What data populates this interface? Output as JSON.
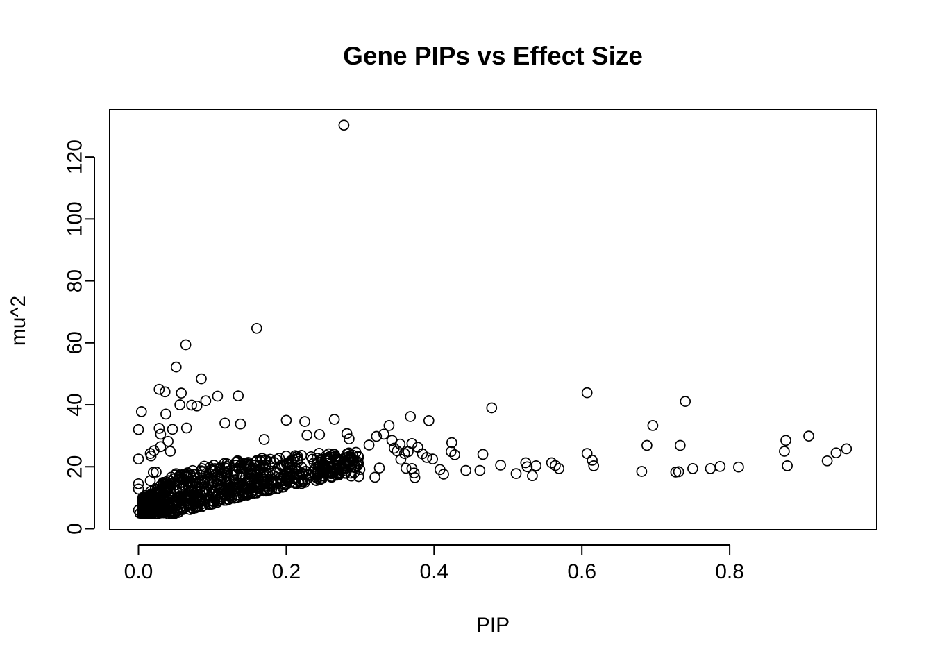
{
  "chart_data": {
    "type": "scatter",
    "title": "Gene PIPs vs Effect Size",
    "xlabel": "PIP",
    "ylabel": "mu^2",
    "xlim": [
      -0.04,
      1.0
    ],
    "ylim": [
      0,
      130
    ],
    "x_ticks": [
      {
        "value": 0.0,
        "label": "0.0"
      },
      {
        "value": 0.2,
        "label": "0.2"
      },
      {
        "value": 0.4,
        "label": "0.4"
      },
      {
        "value": 0.6,
        "label": "0.6"
      },
      {
        "value": 0.8,
        "label": "0.8"
      }
    ],
    "y_ticks": [
      {
        "value": 0,
        "label": "0"
      },
      {
        "value": 20,
        "label": "20"
      },
      {
        "value": 40,
        "label": "40"
      },
      {
        "value": 60,
        "label": "60"
      },
      {
        "value": 80,
        "label": "80"
      },
      {
        "value": 100,
        "label": "100"
      },
      {
        "value": 120,
        "label": "120"
      }
    ],
    "grid": false,
    "legend": "none",
    "marker": "open-circle",
    "point_color": "#000000",
    "series": [
      {
        "name": "genes",
        "points": [
          [
            0.278,
            130.3
          ],
          [
            0.16,
            64.7
          ],
          [
            0.064,
            59.4
          ],
          [
            0.051,
            52.2
          ],
          [
            0.085,
            48.4
          ],
          [
            0.028,
            45.0
          ],
          [
            0.036,
            44.2
          ],
          [
            0.058,
            43.8
          ],
          [
            0.107,
            42.8
          ],
          [
            0.135,
            42.9
          ],
          [
            0.091,
            41.3
          ],
          [
            0.072,
            39.9
          ],
          [
            0.079,
            39.6
          ],
          [
            0.056,
            40.0
          ],
          [
            0.004,
            37.8
          ],
          [
            0.037,
            37.0
          ],
          [
            0.046,
            32.1
          ],
          [
            0.028,
            32.4
          ],
          [
            0.065,
            32.5
          ],
          [
            0.117,
            34.1
          ],
          [
            0.138,
            33.8
          ],
          [
            0.0,
            32.0
          ],
          [
            0.03,
            30.5
          ],
          [
            0.04,
            28.2
          ],
          [
            0.03,
            26.5
          ],
          [
            0.021,
            25.2
          ],
          [
            0.043,
            25.0
          ],
          [
            0.016,
            24.3
          ],
          [
            0.017,
            23.5
          ],
          [
            0.0,
            22.5
          ],
          [
            0.02,
            18.2
          ],
          [
            0.024,
            18.3
          ],
          [
            0.016,
            15.5
          ],
          [
            0.0,
            14.5
          ],
          [
            0.0,
            12.8
          ],
          [
            0.0,
            6.0
          ],
          [
            0.002,
            5.0
          ],
          [
            0.2,
            35.0
          ],
          [
            0.225,
            34.6
          ],
          [
            0.265,
            35.3
          ],
          [
            0.245,
            30.4
          ],
          [
            0.228,
            30.2
          ],
          [
            0.17,
            28.8
          ],
          [
            0.282,
            30.7
          ],
          [
            0.285,
            29.0
          ],
          [
            0.312,
            27.0
          ],
          [
            0.322,
            29.8
          ],
          [
            0.332,
            30.5
          ],
          [
            0.339,
            33.3
          ],
          [
            0.368,
            36.2
          ],
          [
            0.393,
            34.9
          ],
          [
            0.343,
            28.5
          ],
          [
            0.354,
            27.3
          ],
          [
            0.37,
            27.5
          ],
          [
            0.378,
            26.3
          ],
          [
            0.346,
            26.0
          ],
          [
            0.35,
            25.1
          ],
          [
            0.36,
            24.3
          ],
          [
            0.365,
            24.9
          ],
          [
            0.384,
            24.2
          ],
          [
            0.39,
            23.0
          ],
          [
            0.398,
            22.5
          ],
          [
            0.355,
            22.4
          ],
          [
            0.362,
            19.5
          ],
          [
            0.37,
            19.4
          ],
          [
            0.373,
            18.0
          ],
          [
            0.374,
            16.5
          ],
          [
            0.32,
            16.6
          ],
          [
            0.298,
            16.8
          ],
          [
            0.288,
            17.0
          ],
          [
            0.326,
            19.6
          ],
          [
            0.408,
            19.1
          ],
          [
            0.413,
            17.6
          ],
          [
            0.424,
            27.8
          ],
          [
            0.423,
            24.9
          ],
          [
            0.428,
            23.9
          ],
          [
            0.443,
            18.8
          ],
          [
            0.462,
            18.8
          ],
          [
            0.466,
            24.0
          ],
          [
            0.478,
            39.0
          ],
          [
            0.49,
            20.5
          ],
          [
            0.511,
            17.8
          ],
          [
            0.524,
            21.3
          ],
          [
            0.526,
            20.0
          ],
          [
            0.533,
            17.1
          ],
          [
            0.538,
            20.3
          ],
          [
            0.559,
            21.3
          ],
          [
            0.564,
            20.4
          ],
          [
            0.569,
            19.4
          ],
          [
            0.607,
            43.9
          ],
          [
            0.607,
            24.3
          ],
          [
            0.614,
            22.1
          ],
          [
            0.616,
            20.3
          ],
          [
            0.681,
            18.5
          ],
          [
            0.688,
            26.9
          ],
          [
            0.696,
            33.3
          ],
          [
            0.727,
            18.3
          ],
          [
            0.731,
            18.4
          ],
          [
            0.733,
            26.9
          ],
          [
            0.74,
            41.1
          ],
          [
            0.75,
            19.4
          ],
          [
            0.774,
            19.4
          ],
          [
            0.787,
            20.1
          ],
          [
            0.812,
            19.9
          ],
          [
            0.874,
            25.0
          ],
          [
            0.876,
            28.5
          ],
          [
            0.878,
            20.3
          ],
          [
            0.907,
            29.9
          ],
          [
            0.932,
            21.9
          ],
          [
            0.944,
            24.5
          ],
          [
            0.958,
            25.8
          ]
        ]
      }
    ],
    "dense_cluster": {
      "description": "thousands of overlapping points",
      "x_range": [
        0.005,
        0.3
      ],
      "y_low_at_x": [
        [
          0.005,
          4.8
        ],
        [
          0.05,
          4.8
        ],
        [
          0.1,
          8.0
        ],
        [
          0.15,
          11.0
        ],
        [
          0.2,
          13.5
        ],
        [
          0.25,
          16.0
        ],
        [
          0.3,
          18.5
        ]
      ],
      "y_high_at_x": [
        [
          0.005,
          10.0
        ],
        [
          0.05,
          18.0
        ],
        [
          0.1,
          21.0
        ],
        [
          0.15,
          22.5
        ],
        [
          0.2,
          23.5
        ],
        [
          0.25,
          24.5
        ],
        [
          0.3,
          25.0
        ]
      ]
    }
  }
}
